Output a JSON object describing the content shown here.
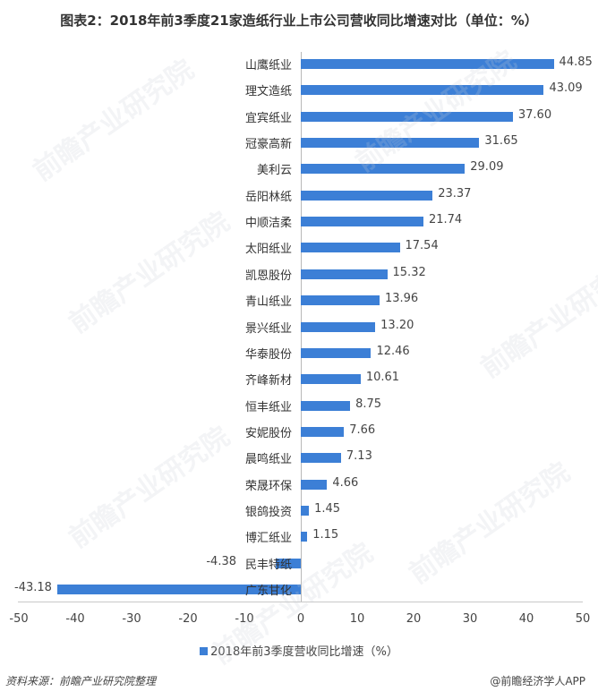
{
  "title": "图表2：2018年前3季度21家造纸行业上市公司营收同比增速对比（单位：%）",
  "chart_data": {
    "type": "bar",
    "orientation": "horizontal",
    "title": "图表2：2018年前3季度21家造纸行业上市公司营收同比增速对比（单位：%）",
    "xlabel": "",
    "ylabel": "",
    "xlim": [
      -50,
      50
    ],
    "x_ticks": [
      -50,
      -40,
      -30,
      -20,
      -10,
      0,
      10,
      20,
      30,
      40,
      50
    ],
    "grid": false,
    "legend_position": "bottom",
    "bar_color": "#3c7fd6",
    "categories": [
      "山鹰纸业",
      "理文造纸",
      "宜宾纸业",
      "冠豪高新",
      "美利云",
      "岳阳林纸",
      "中顺洁柔",
      "太阳纸业",
      "凯恩股份",
      "青山纸业",
      "景兴纸业",
      "华泰股份",
      "齐峰新材",
      "恒丰纸业",
      "安妮股份",
      "晨鸣纸业",
      "荣晟环保",
      "银鸽投资",
      "博汇纸业",
      "民丰特纸",
      "广东甘化"
    ],
    "series": [
      {
        "name": "2018年前3季度营收同比增速（%）",
        "values": [
          44.85,
          43.09,
          37.6,
          31.65,
          29.09,
          23.37,
          21.74,
          17.54,
          15.32,
          13.96,
          13.2,
          12.46,
          10.61,
          8.75,
          7.66,
          7.13,
          4.66,
          1.45,
          1.15,
          -4.38,
          -43.18
        ]
      }
    ],
    "value_labels": [
      "44.85",
      "43.09",
      "37.60",
      "31.65",
      "29.09",
      "23.37",
      "21.74",
      "17.54",
      "15.32",
      "13.96",
      "13.20",
      "12.46",
      "10.61",
      "8.75",
      "7.66",
      "7.13",
      "4.66",
      "1.45",
      "1.15",
      "-4.38",
      "-43.18"
    ]
  },
  "axis": {
    "ticks": [
      "-50",
      "-40",
      "-30",
      "-20",
      "-10",
      "0",
      "10",
      "20",
      "30",
      "40",
      "50"
    ]
  },
  "legend": {
    "label": "2018年前3季度营收同比增速（%）"
  },
  "footer": {
    "source": "资料来源：前瞻产业研究院整理",
    "credit": "@前瞻经济学人APP"
  },
  "watermark": {
    "text": "前瞻产业研究院"
  }
}
